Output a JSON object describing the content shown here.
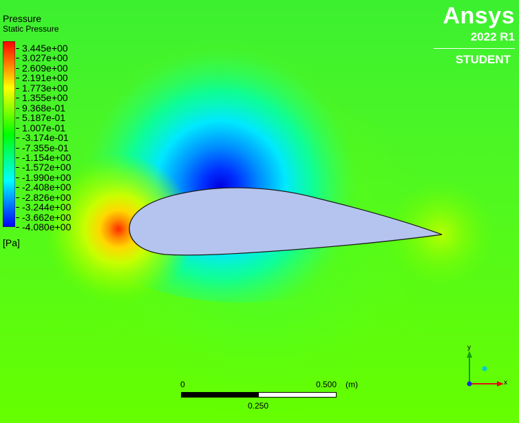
{
  "brand": {
    "name": "Ansys",
    "version": "2022 R1",
    "edition": "STUDENT"
  },
  "legend": {
    "title": "Pressure",
    "subtitle": "Static Pressure",
    "unit": "[Pa]",
    "levels": [
      "3.445e+00",
      "3.027e+00",
      "2.609e+00",
      "2.191e+00",
      "1.773e+00",
      "1.355e+00",
      "9.368e-01",
      "5.187e-01",
      "1.007e-01",
      "-3.174e-01",
      "-7.355e-01",
      "-1.154e+00",
      "-1.572e+00",
      "-1.990e+00",
      "-2.408e+00",
      "-2.826e+00",
      "-3.244e+00",
      "-3.662e+00",
      "-4.080e+00"
    ],
    "colors": [
      "#ff0000",
      "#ff8000",
      "#ffff00",
      "#80ff00",
      "#00ff00",
      "#00ff80",
      "#00ffff",
      "#0080ff",
      "#0000ff"
    ]
  },
  "scale_bar": {
    "start": "0",
    "end": "0.500",
    "unit": "(m)",
    "mid": "0.250"
  },
  "triad": {
    "x_label": "x",
    "y_label": "y",
    "x_color": "#e01010",
    "y_color": "#10a010",
    "z_color": "#00c0c0"
  },
  "colors": {
    "background": "#55f510",
    "airfoil_fill": "#b4c4ee",
    "brand_text": "#ffffff"
  }
}
